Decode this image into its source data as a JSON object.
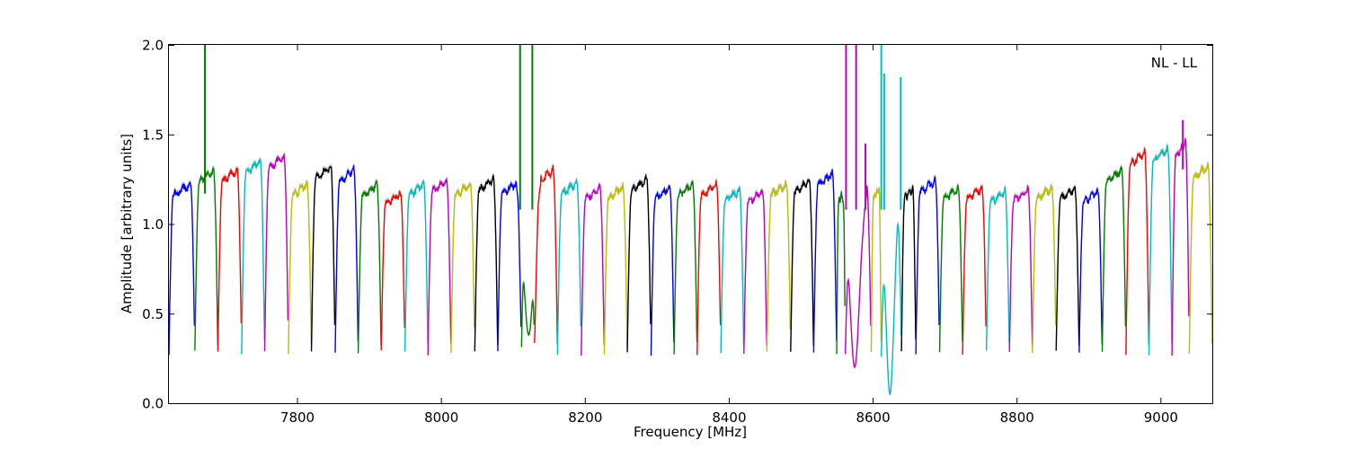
{
  "chart_data": {
    "type": "line",
    "title": "",
    "annotation": "NL - LL",
    "xlabel": "Frequency [MHz]",
    "ylabel": "Amplitude [arbitrary units]",
    "xlim": [
      7622,
      9072
    ],
    "ylim": [
      0.0,
      2.0
    ],
    "xticks": [
      7800,
      8000,
      8200,
      8400,
      8600,
      8800,
      9000
    ],
    "xtick_labels": [
      "7800",
      "8000",
      "8200",
      "8400",
      "8600",
      "8800",
      "9000"
    ],
    "yticks": [
      0.0,
      0.5,
      1.0,
      1.5,
      2.0
    ],
    "ytick_labels": [
      "0.0",
      "0.5",
      "1.0",
      "1.5",
      "2.0"
    ],
    "grid": false,
    "background_trace_color": "#bfbfbf",
    "channels": [
      {
        "start": 7622,
        "end": 7658,
        "color": "#0000ff",
        "level": 1.22
      },
      {
        "start": 7658,
        "end": 7690,
        "color": "#008000",
        "level": 1.3,
        "rfi": [
          {
            "at": 7672,
            "peak": 2.0
          }
        ]
      },
      {
        "start": 7690,
        "end": 7723,
        "color": "#ff0000",
        "level": 1.3
      },
      {
        "start": 7723,
        "end": 7755,
        "color": "#00bfbf",
        "level": 1.35
      },
      {
        "start": 7755,
        "end": 7788,
        "color": "#bf00bf",
        "level": 1.38
      },
      {
        "start": 7788,
        "end": 7820,
        "color": "#bfbf00",
        "level": 1.22
      },
      {
        "start": 7820,
        "end": 7853,
        "color": "#000000",
        "level": 1.32
      },
      {
        "start": 7853,
        "end": 7885,
        "color": "#0000ff",
        "level": 1.3
      },
      {
        "start": 7885,
        "end": 7917,
        "color": "#008000",
        "level": 1.22
      },
      {
        "start": 7917,
        "end": 7950,
        "color": "#ff0000",
        "level": 1.17
      },
      {
        "start": 7950,
        "end": 7982,
        "color": "#00bfbf",
        "level": 1.22
      },
      {
        "start": 7982,
        "end": 8014,
        "color": "#bf00bf",
        "level": 1.24
      },
      {
        "start": 8014,
        "end": 8047,
        "color": "#bfbf00",
        "level": 1.22
      },
      {
        "start": 8047,
        "end": 8079,
        "color": "#000000",
        "level": 1.25
      },
      {
        "start": 8079,
        "end": 8112,
        "color": "#0000ff",
        "level": 1.23
      },
      {
        "start": 8112,
        "end": 8130,
        "color": "#008000",
        "level": 1.2,
        "rfi": [
          {
            "at": 8110,
            "peak": 2.0
          },
          {
            "at": 8127,
            "peak": 2.0
          }
        ]
      },
      {
        "start": 8130,
        "end": 8162,
        "color": "#ff0000",
        "level": 1.3
      },
      {
        "start": 8162,
        "end": 8195,
        "color": "#00bfbf",
        "level": 1.23
      },
      {
        "start": 8195,
        "end": 8227,
        "color": "#bf00bf",
        "level": 1.2
      },
      {
        "start": 8227,
        "end": 8259,
        "color": "#bfbf00",
        "level": 1.2
      },
      {
        "start": 8259,
        "end": 8292,
        "color": "#000000",
        "level": 1.25
      },
      {
        "start": 8292,
        "end": 8324,
        "color": "#0000ff",
        "level": 1.2
      },
      {
        "start": 8324,
        "end": 8356,
        "color": "#008000",
        "level": 1.22
      },
      {
        "start": 8356,
        "end": 8389,
        "color": "#ff0000",
        "level": 1.22
      },
      {
        "start": 8389,
        "end": 8421,
        "color": "#00bfbf",
        "level": 1.19
      },
      {
        "start": 8421,
        "end": 8453,
        "color": "#bf00bf",
        "level": 1.18
      },
      {
        "start": 8453,
        "end": 8486,
        "color": "#bfbf00",
        "level": 1.22
      },
      {
        "start": 8486,
        "end": 8518,
        "color": "#000000",
        "level": 1.24
      },
      {
        "start": 8518,
        "end": 8550,
        "color": "#0000ff",
        "level": 1.28
      },
      {
        "start": 8550,
        "end": 8562,
        "color": "#008000",
        "level": 1.18
      },
      {
        "start": 8562,
        "end": 8598,
        "color": "#bf00bf",
        "level": 1.2,
        "rfi": [
          {
            "at": 8563,
            "peak": 2.0
          },
          {
            "at": 8577,
            "peak": 2.0
          },
          {
            "at": 8590,
            "peak": 1.45
          }
        ]
      },
      {
        "start": 8598,
        "end": 8612,
        "color": "#bfbf00",
        "level": 1.2
      },
      {
        "start": 8612,
        "end": 8640,
        "color": "#00bfbf",
        "level": 1.2,
        "rfi": [
          {
            "at": 8612,
            "peak": 2.0
          },
          {
            "at": 8616,
            "peak": 1.84
          },
          {
            "at": 8639,
            "peak": 1.82
          }
        ]
      },
      {
        "start": 8640,
        "end": 8660,
        "color": "#000000",
        "level": 1.2
      },
      {
        "start": 8660,
        "end": 8693,
        "color": "#0000ff",
        "level": 1.24
      },
      {
        "start": 8693,
        "end": 8725,
        "color": "#008000",
        "level": 1.2
      },
      {
        "start": 8725,
        "end": 8758,
        "color": "#ff0000",
        "level": 1.2
      },
      {
        "start": 8758,
        "end": 8790,
        "color": "#00bfbf",
        "level": 1.18
      },
      {
        "start": 8790,
        "end": 8822,
        "color": "#bf00bf",
        "level": 1.19
      },
      {
        "start": 8822,
        "end": 8855,
        "color": "#bfbf00",
        "level": 1.2
      },
      {
        "start": 8855,
        "end": 8887,
        "color": "#000000",
        "level": 1.2
      },
      {
        "start": 8887,
        "end": 8919,
        "color": "#0000ff",
        "level": 1.18
      },
      {
        "start": 8919,
        "end": 8952,
        "color": "#008000",
        "level": 1.3
      },
      {
        "start": 8952,
        "end": 8984,
        "color": "#ff0000",
        "level": 1.4
      },
      {
        "start": 8984,
        "end": 9016,
        "color": "#00bfbf",
        "level": 1.42
      },
      {
        "start": 9016,
        "end": 9040,
        "color": "#bf00bf",
        "level": 1.45,
        "rfi": [
          {
            "at": 9031,
            "peak": 1.58
          }
        ]
      },
      {
        "start": 9040,
        "end": 9072,
        "color": "#bfbf00",
        "level": 1.32
      }
    ],
    "absorption": [
      {
        "center": 8122,
        "width": 14,
        "min": 0.38,
        "color": "#008000"
      },
      {
        "center": 8575,
        "width": 14,
        "min": 0.2,
        "color": "#bf00bf"
      },
      {
        "center": 8624,
        "width": 12,
        "min": 0.05,
        "color": "#00bfbf"
      }
    ]
  }
}
